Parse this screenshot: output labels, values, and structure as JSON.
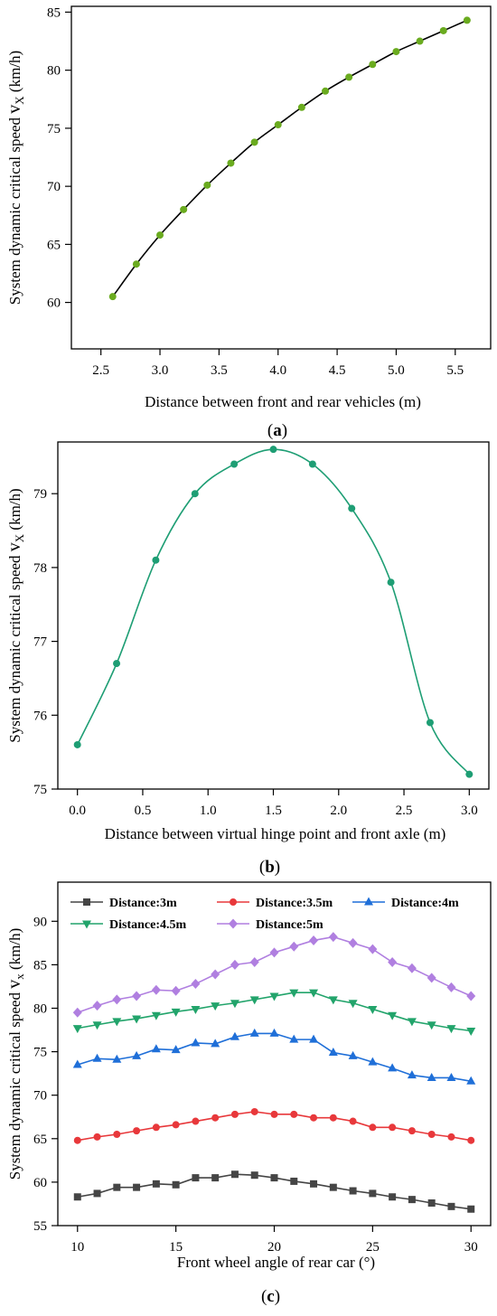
{
  "chart_data": [
    {
      "type": "line",
      "panel_label": "a",
      "xlabel": "Distance between front and rear vehicles (m)",
      "ylabel": "System dynamic critical speed",
      "ylabel_symbol": "v",
      "ylabel_subscript": "X",
      "ylabel_unit": "(km/h)",
      "xlim": [
        2.25,
        5.8
      ],
      "ylim": [
        56,
        85.5
      ],
      "xticks": [
        2.5,
        3.0,
        3.5,
        4.0,
        4.5,
        5.0,
        5.5
      ],
      "yticks": [
        60,
        65,
        70,
        75,
        80,
        85
      ],
      "xtick_decimals": 1,
      "ytick_decimals": 0,
      "grid": false,
      "colors": {
        "line": "#000000",
        "marker": "#6aab1f"
      },
      "series": [
        {
          "x": [
            2.6,
            2.8,
            3.0,
            3.2,
            3.4,
            3.6,
            3.8,
            4.0,
            4.2,
            4.4,
            4.6,
            4.8,
            5.0,
            5.2,
            5.4,
            5.6
          ],
          "values": [
            60.5,
            63.3,
            65.8,
            68.0,
            70.1,
            72.0,
            73.8,
            75.3,
            76.8,
            78.2,
            79.4,
            80.5,
            81.6,
            82.5,
            83.4,
            84.3
          ]
        }
      ]
    },
    {
      "type": "line",
      "panel_label": "b",
      "xlabel": "Distance between virtual hinge point and front axle (m)",
      "ylabel": "System dynamic critical speed",
      "ylabel_symbol": "v",
      "ylabel_subscript": "X",
      "ylabel_unit": "(km/h)",
      "xlim": [
        -0.15,
        3.15
      ],
      "ylim": [
        75.0,
        79.7
      ],
      "xticks": [
        0.0,
        0.5,
        1.0,
        1.5,
        2.0,
        2.5,
        3.0
      ],
      "yticks": [
        75,
        76,
        77,
        78,
        79
      ],
      "xtick_decimals": 1,
      "ytick_decimals": 0,
      "grid": false,
      "colors": {
        "line": "#1e9e74",
        "marker": "#1e9e74"
      },
      "series": [
        {
          "x": [
            0.0,
            0.3,
            0.6,
            0.9,
            1.2,
            1.5,
            1.8,
            2.1,
            2.4,
            2.7,
            3.0
          ],
          "values": [
            75.6,
            76.7,
            78.1,
            79.0,
            79.4,
            79.6,
            79.4,
            78.8,
            77.8,
            75.9,
            75.2
          ]
        }
      ]
    },
    {
      "type": "line",
      "panel_label": "c",
      "xlabel": "Front wheel angle of rear car (°)",
      "ylabel": "System dynamic critical speed",
      "ylabel_symbol": "v",
      "ylabel_subscript": "x",
      "ylabel_unit": "(km/h)",
      "xlim": [
        9.0,
        31.0
      ],
      "ylim": [
        55.0,
        94.5
      ],
      "xticks": [
        10,
        15,
        20,
        25,
        30
      ],
      "yticks": [
        55,
        60,
        65,
        70,
        75,
        80,
        85,
        90
      ],
      "xtick_decimals": 0,
      "ytick_decimals": 0,
      "grid": false,
      "legend_placement": "top",
      "x": [
        10,
        11,
        12,
        13,
        14,
        15,
        16,
        17,
        18,
        19,
        20,
        21,
        22,
        23,
        24,
        25,
        26,
        27,
        28,
        29,
        30
      ],
      "series": [
        {
          "name": "Distance:3m",
          "color": "#454545",
          "marker": "square",
          "values": [
            58.3,
            58.7,
            59.4,
            59.4,
            59.8,
            59.7,
            60.5,
            60.5,
            60.9,
            60.8,
            60.5,
            60.1,
            59.8,
            59.4,
            59.0,
            58.7,
            58.3,
            58.0,
            57.6,
            57.2,
            56.9
          ]
        },
        {
          "name": "Distance:3.5m",
          "color": "#e8383b",
          "marker": "circle",
          "values": [
            64.8,
            65.2,
            65.5,
            65.9,
            66.3,
            66.6,
            67.0,
            67.4,
            67.8,
            68.1,
            67.8,
            67.8,
            67.4,
            67.4,
            67.0,
            66.3,
            66.3,
            65.9,
            65.5,
            65.2,
            64.8
          ]
        },
        {
          "name": "Distance:4m",
          "color": "#1f6fd8",
          "marker": "triangle-up",
          "values": [
            73.5,
            74.2,
            74.1,
            74.5,
            75.3,
            75.2,
            76.0,
            75.9,
            76.7,
            77.1,
            77.1,
            76.4,
            76.4,
            74.9,
            74.5,
            73.8,
            73.1,
            72.3,
            72.0,
            72.0,
            71.6
          ]
        },
        {
          "name": "Distance:4.5m",
          "color": "#22a46b",
          "marker": "triangle-down",
          "values": [
            77.7,
            78.1,
            78.5,
            78.8,
            79.2,
            79.6,
            79.9,
            80.3,
            80.6,
            81.0,
            81.4,
            81.8,
            81.8,
            81.0,
            80.6,
            79.9,
            79.2,
            78.5,
            78.1,
            77.7,
            77.4
          ]
        },
        {
          "name": "Distance:5m",
          "color": "#b07fe0",
          "marker": "diamond",
          "values": [
            79.5,
            80.3,
            81.0,
            81.4,
            82.1,
            82.0,
            82.8,
            83.9,
            85.0,
            85.3,
            86.4,
            87.1,
            87.8,
            88.2,
            87.5,
            86.8,
            85.3,
            84.6,
            83.5,
            82.4,
            81.4
          ]
        }
      ]
    }
  ]
}
